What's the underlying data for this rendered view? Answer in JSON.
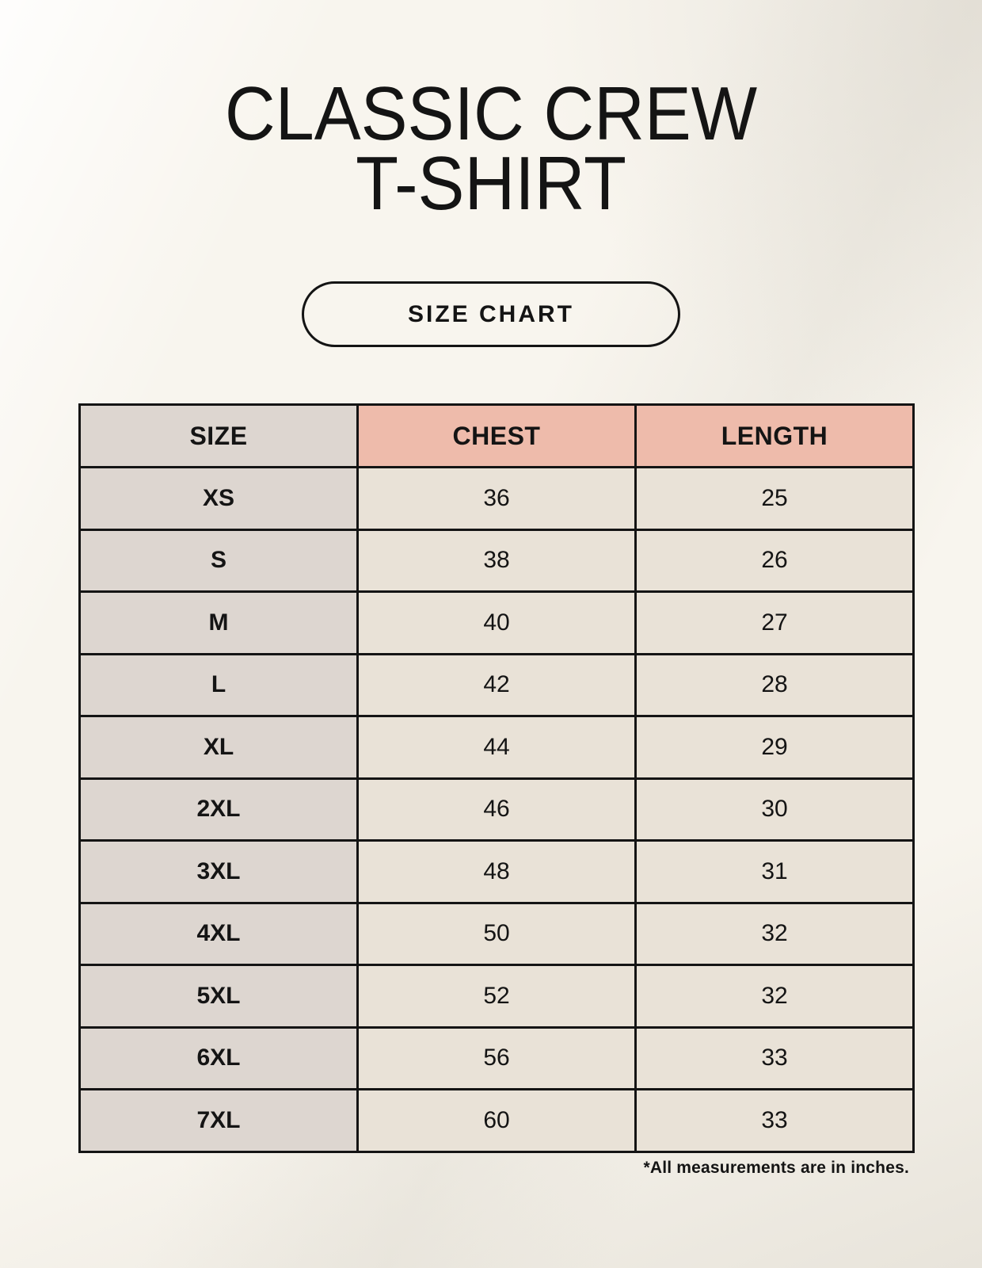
{
  "header": {
    "title_line1": "CLASSIC CREW",
    "title_line2": "T-SHIRT",
    "badge_label": "SIZE CHART"
  },
  "chart_data": {
    "type": "table",
    "title": "CLASSIC CREW T-SHIRT",
    "subtitle": "SIZE CHART",
    "columns": [
      "SIZE",
      "CHEST",
      "LENGTH"
    ],
    "rows": [
      [
        "XS",
        "36",
        "25"
      ],
      [
        "S",
        "38",
        "26"
      ],
      [
        "M",
        "40",
        "27"
      ],
      [
        "L",
        "42",
        "28"
      ],
      [
        "XL",
        "44",
        "29"
      ],
      [
        "2XL",
        "46",
        "30"
      ],
      [
        "3XL",
        "48",
        "31"
      ],
      [
        "4XL",
        "50",
        "32"
      ],
      [
        "5XL",
        "52",
        "32"
      ],
      [
        "6XL",
        "56",
        "33"
      ],
      [
        "7XL",
        "60",
        "33"
      ]
    ],
    "units": "inches"
  },
  "footnote": "*All measurements are in inches.",
  "colors": {
    "background": "#f8f5ee",
    "header_accent": "#eebbab",
    "size_column": "#ddd6d0",
    "value_cell": "#e9e2d7",
    "border": "#141414",
    "ink": "#141414"
  }
}
